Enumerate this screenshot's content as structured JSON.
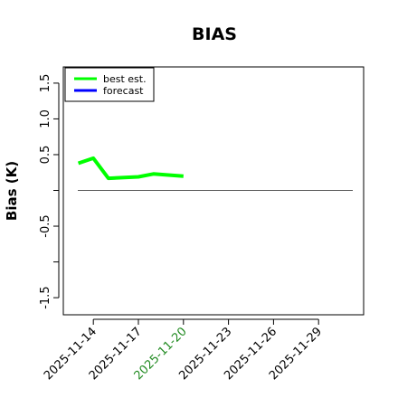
{
  "chart_data": {
    "type": "line",
    "title": "BIAS",
    "ylabel": "Bias (K)",
    "xlabel": "",
    "ylim": [
      -1.6,
      1.6
    ],
    "xlim": [
      "2025-11-12",
      "2025-12-02"
    ],
    "yticks": [
      -1.5,
      -1.0,
      -0.5,
      0.0,
      0.5,
      1.0,
      1.5
    ],
    "ytick_labels": [
      "-1.5",
      "",
      "-0.5",
      "",
      "0.5",
      "1.0",
      "1.5"
    ],
    "xticks": [
      "2025-11-14",
      "2025-11-17",
      "2025-11-20",
      "2025-11-23",
      "2025-11-26",
      "2025-11-29"
    ],
    "highlight_xtick": "2025-11-20",
    "highlight_color": "#228B22",
    "zero_line": 0.0,
    "legend": {
      "position": "top-left",
      "entries": [
        {
          "label": "best est.",
          "color": "#00ff00"
        },
        {
          "label": "forecast",
          "color": "#0000ff"
        }
      ]
    },
    "series": [
      {
        "name": "best est.",
        "color": "#00ff00",
        "x": [
          "2025-11-13",
          "2025-11-14",
          "2025-11-15",
          "2025-11-17",
          "2025-11-18",
          "2025-11-20"
        ],
        "y": [
          0.38,
          0.45,
          0.17,
          0.19,
          0.23,
          0.2
        ]
      },
      {
        "name": "forecast",
        "color": "#0000ff",
        "x": [],
        "y": []
      }
    ]
  }
}
